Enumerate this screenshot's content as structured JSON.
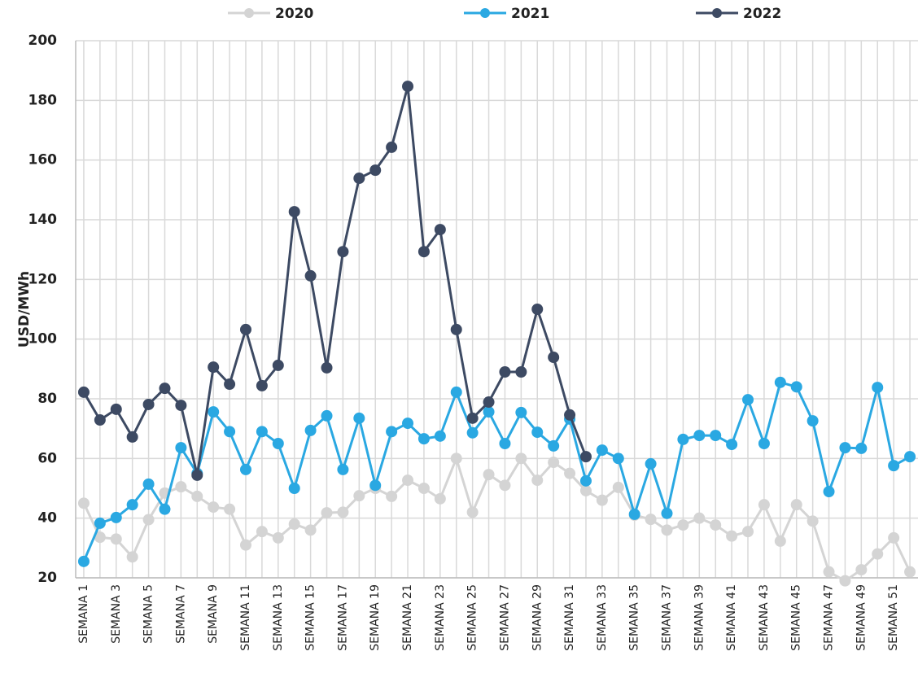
{
  "chart_data": {
    "type": "line",
    "y_label": "USD/MWh",
    "categories": [
      "SEMANA 1",
      null,
      "SEMANA 3",
      null,
      "SEMANA 5",
      null,
      "SEMANA 7",
      null,
      "SEMANA 9",
      null,
      "SEMANA 11",
      null,
      "SEMANA 13",
      null,
      "SEMANA 15",
      null,
      "SEMANA 17",
      null,
      "SEMANA 19",
      null,
      "SEMANA 21",
      null,
      "SEMANA 23",
      null,
      "SEMANA 25",
      null,
      "SEMANA 27",
      null,
      "SEMANA 29",
      null,
      "SEMANA 31",
      null,
      "SEMANA 33",
      null,
      "SEMANA 35",
      null,
      "SEMANA 37",
      null,
      "SEMANA 39",
      null,
      "SEMANA 41",
      null,
      "SEMANA 43",
      null,
      "SEMANA 45",
      null,
      "SEMANA 47",
      null,
      "SEMANA 49",
      null,
      "SEMANA 51",
      null
    ],
    "series": [
      {
        "name": "2020",
        "color": "#d4d4d4",
        "values": [
          45,
          33.6,
          33,
          27,
          39.5,
          48.4,
          50.5,
          47.3,
          43.7,
          43,
          31,
          35.5,
          33.4,
          38,
          36,
          41.8,
          42,
          47.5,
          50,
          47.3,
          52.7,
          50,
          46.5,
          60,
          42,
          54.6,
          51,
          60,
          52.7,
          58.7,
          55,
          49.2,
          46,
          50.3,
          41,
          39.6,
          36,
          37.7,
          40,
          37.7,
          34,
          35.5,
          44.5,
          32.3,
          44.5,
          39,
          22,
          19,
          22.7,
          28,
          33.4,
          22
        ]
      },
      {
        "name": "2021",
        "color": "#2aa8e2",
        "values": [
          25.5,
          38.3,
          40.2,
          44.5,
          51.4,
          43,
          63.6,
          55,
          75.6,
          69,
          56.3,
          69,
          65,
          50,
          69.4,
          74.3,
          56.3,
          73.5,
          51,
          69,
          71.8,
          66.6,
          67.5,
          82.2,
          68.6,
          75.6,
          65,
          75.4,
          68.8,
          64.2,
          73.2,
          52.5,
          62.8,
          60,
          41.3,
          58.2,
          41.6,
          66.4,
          67.7,
          67.7,
          64.7,
          79.7,
          65,
          85.5,
          84,
          72.6,
          48.9,
          63.6,
          63.4,
          83.8,
          57.6,
          60.6
        ]
      },
      {
        "name": "2022",
        "color": "#3d4a63",
        "values": [
          82.2,
          72.9,
          76.5,
          67.2,
          78.1,
          83.5,
          77.8,
          54.4,
          90.6,
          84.9,
          103.2,
          84.4,
          91.2,
          142.7,
          121.2,
          90.4,
          129.3,
          153.9,
          156.6,
          164.3,
          184.7,
          129.3,
          136.7,
          103.2,
          73.5,
          78.9,
          89,
          89,
          110,
          93.9,
          74.6,
          60.6,
          null,
          null,
          null,
          null,
          null,
          null,
          null,
          null,
          null,
          null,
          null,
          null,
          null,
          null,
          null,
          null,
          null,
          null,
          null,
          null
        ]
      }
    ],
    "ylim": [
      20,
      200
    ],
    "yticks": [
      20,
      40,
      60,
      80,
      100,
      120,
      140,
      160,
      180,
      200
    ],
    "grid": true,
    "legend": "top"
  }
}
